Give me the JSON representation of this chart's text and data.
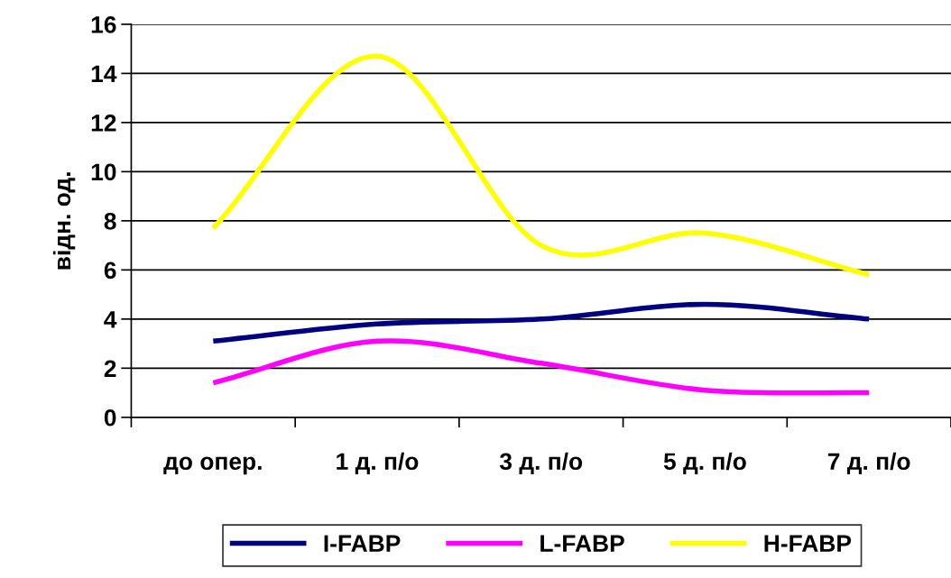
{
  "chart_data": {
    "type": "line",
    "ylabel": "відн. од.",
    "categories": [
      "до опер.",
      "1 д. п/о",
      "3 д. п/о",
      "5 д. п/о",
      "7 д. п/о"
    ],
    "series": [
      {
        "name": "I-FABP",
        "color": "#000080",
        "values": [
          3.1,
          3.8,
          4.0,
          4.6,
          4.0
        ]
      },
      {
        "name": "L-FABP",
        "color": "#ff00ff",
        "values": [
          1.4,
          3.1,
          2.2,
          1.1,
          1.0
        ]
      },
      {
        "name": "H-FABP",
        "color": "#ffff00",
        "values": [
          7.7,
          14.7,
          7.0,
          7.5,
          5.8
        ]
      }
    ],
    "ylim": [
      0,
      16
    ],
    "yticks": [
      0,
      2,
      4,
      6,
      8,
      10,
      12,
      14,
      16
    ],
    "grid": "y",
    "legend": "bottom",
    "marker": "none",
    "line_style": "solid"
  }
}
